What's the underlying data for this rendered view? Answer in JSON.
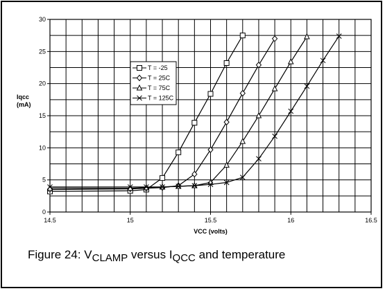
{
  "chart_data": {
    "type": "line",
    "title": "",
    "xlabel": "VCC (volts)",
    "ylabel": "Iqcc",
    "ylabel_unit": "(mA)",
    "xlim": [
      14.5,
      16.5
    ],
    "ylim": [
      0,
      30
    ],
    "xticks": [
      "14.5",
      "15",
      "15.5",
      "16",
      "16.5"
    ],
    "yticks": [
      "0",
      "5",
      "10",
      "15",
      "20",
      "25",
      "30"
    ],
    "x_minor_step": 0.1,
    "y_step": 2.5,
    "grid": true,
    "legend_position": "upper-left-center",
    "series": [
      {
        "name": "T = -25",
        "marker": "square",
        "points": [
          [
            14.5,
            3.2
          ],
          [
            15.0,
            3.3
          ],
          [
            15.1,
            3.5
          ],
          [
            15.2,
            5.3
          ],
          [
            15.3,
            9.3
          ],
          [
            15.4,
            13.9
          ],
          [
            15.5,
            18.4
          ],
          [
            15.6,
            23.2
          ],
          [
            15.7,
            27.5
          ]
        ]
      },
      {
        "name": "T = 25C",
        "marker": "diamond",
        "points": [
          [
            14.5,
            3.5
          ],
          [
            15.0,
            3.6
          ],
          [
            15.1,
            3.7
          ],
          [
            15.2,
            3.8
          ],
          [
            15.3,
            4.1
          ],
          [
            15.4,
            5.9
          ],
          [
            15.5,
            9.7
          ],
          [
            15.6,
            14.0
          ],
          [
            15.7,
            18.5
          ],
          [
            15.8,
            22.9
          ],
          [
            15.9,
            27.0
          ]
        ]
      },
      {
        "name": "T = 75C",
        "marker": "triangle",
        "points": [
          [
            14.5,
            3.7
          ],
          [
            15.0,
            3.7
          ],
          [
            15.1,
            3.8
          ],
          [
            15.2,
            3.9
          ],
          [
            15.3,
            4.0
          ],
          [
            15.4,
            4.1
          ],
          [
            15.5,
            4.6
          ],
          [
            15.6,
            7.3
          ],
          [
            15.7,
            11.0
          ],
          [
            15.8,
            15.0
          ],
          [
            15.9,
            19.2
          ],
          [
            16.0,
            23.4
          ],
          [
            16.1,
            27.3
          ]
        ]
      },
      {
        "name": "T = 125C",
        "marker": "x",
        "points": [
          [
            14.5,
            3.9
          ],
          [
            15.0,
            3.9
          ],
          [
            15.1,
            3.9
          ],
          [
            15.2,
            3.9
          ],
          [
            15.3,
            4.0
          ],
          [
            15.4,
            4.1
          ],
          [
            15.5,
            4.3
          ],
          [
            15.6,
            4.6
          ],
          [
            15.7,
            5.4
          ],
          [
            15.8,
            8.3
          ],
          [
            15.9,
            11.8
          ],
          [
            16.0,
            15.7
          ],
          [
            16.1,
            19.6
          ],
          [
            16.2,
            23.6
          ],
          [
            16.3,
            27.4
          ]
        ]
      }
    ]
  },
  "caption": {
    "prefix": "Figure 24:  V",
    "sub1": "CLAMP",
    "mid": " versus I",
    "sub2": "QCC",
    "suffix": " and temperature"
  }
}
